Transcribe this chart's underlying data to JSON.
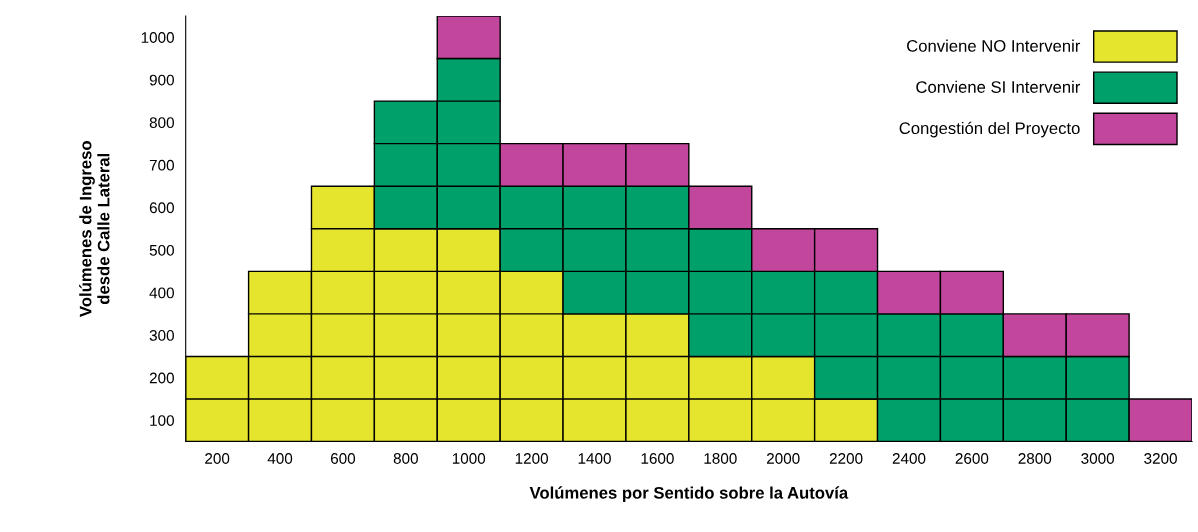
{
  "chart_data": {
    "type": "bar",
    "xlabel": "Volúmenes por Sentido sobre la Autovía",
    "ylabel": "Volúmenes de Ingreso\ndesde Calle Lateral",
    "categories": [
      "200",
      "400",
      "600",
      "800",
      "1000",
      "1200",
      "1400",
      "1600",
      "1800",
      "2000",
      "2200",
      "2400",
      "2600",
      "2800",
      "3000",
      "3200"
    ],
    "series": [
      {
        "name": "Conviene NO Intervenir",
        "color": "#e5e52e",
        "values": [
          200,
          400,
          600,
          500,
          500,
          400,
          300,
          300,
          200,
          200,
          100,
          null,
          null,
          null,
          null,
          null
        ],
        "base": [
          50,
          50,
          50,
          50,
          50,
          50,
          50,
          50,
          50,
          50,
          50,
          null,
          null,
          null,
          null,
          null
        ]
      },
      {
        "name": "Conviene SI Intervenir",
        "color": "#00a06b",
        "values": [
          null,
          null,
          null,
          300,
          400,
          200,
          300,
          300,
          300,
          200,
          300,
          300,
          300,
          200,
          200,
          null
        ],
        "base": [
          null,
          null,
          null,
          550,
          550,
          450,
          350,
          350,
          250,
          250,
          150,
          50,
          50,
          50,
          50,
          null
        ]
      },
      {
        "name": "Congestión del Proyecto",
        "color": "#c2479c",
        "values": [
          null,
          null,
          null,
          null,
          100,
          100,
          100,
          100,
          100,
          100,
          100,
          100,
          100,
          100,
          100,
          100
        ],
        "base": [
          null,
          null,
          null,
          null,
          950,
          650,
          650,
          650,
          550,
          450,
          450,
          350,
          350,
          250,
          250,
          50
        ]
      }
    ],
    "ylim": [
      50,
      1050
    ],
    "yticks": [
      100,
      200,
      300,
      400,
      500,
      600,
      700,
      800,
      900,
      1000
    ],
    "legend": "top right"
  }
}
